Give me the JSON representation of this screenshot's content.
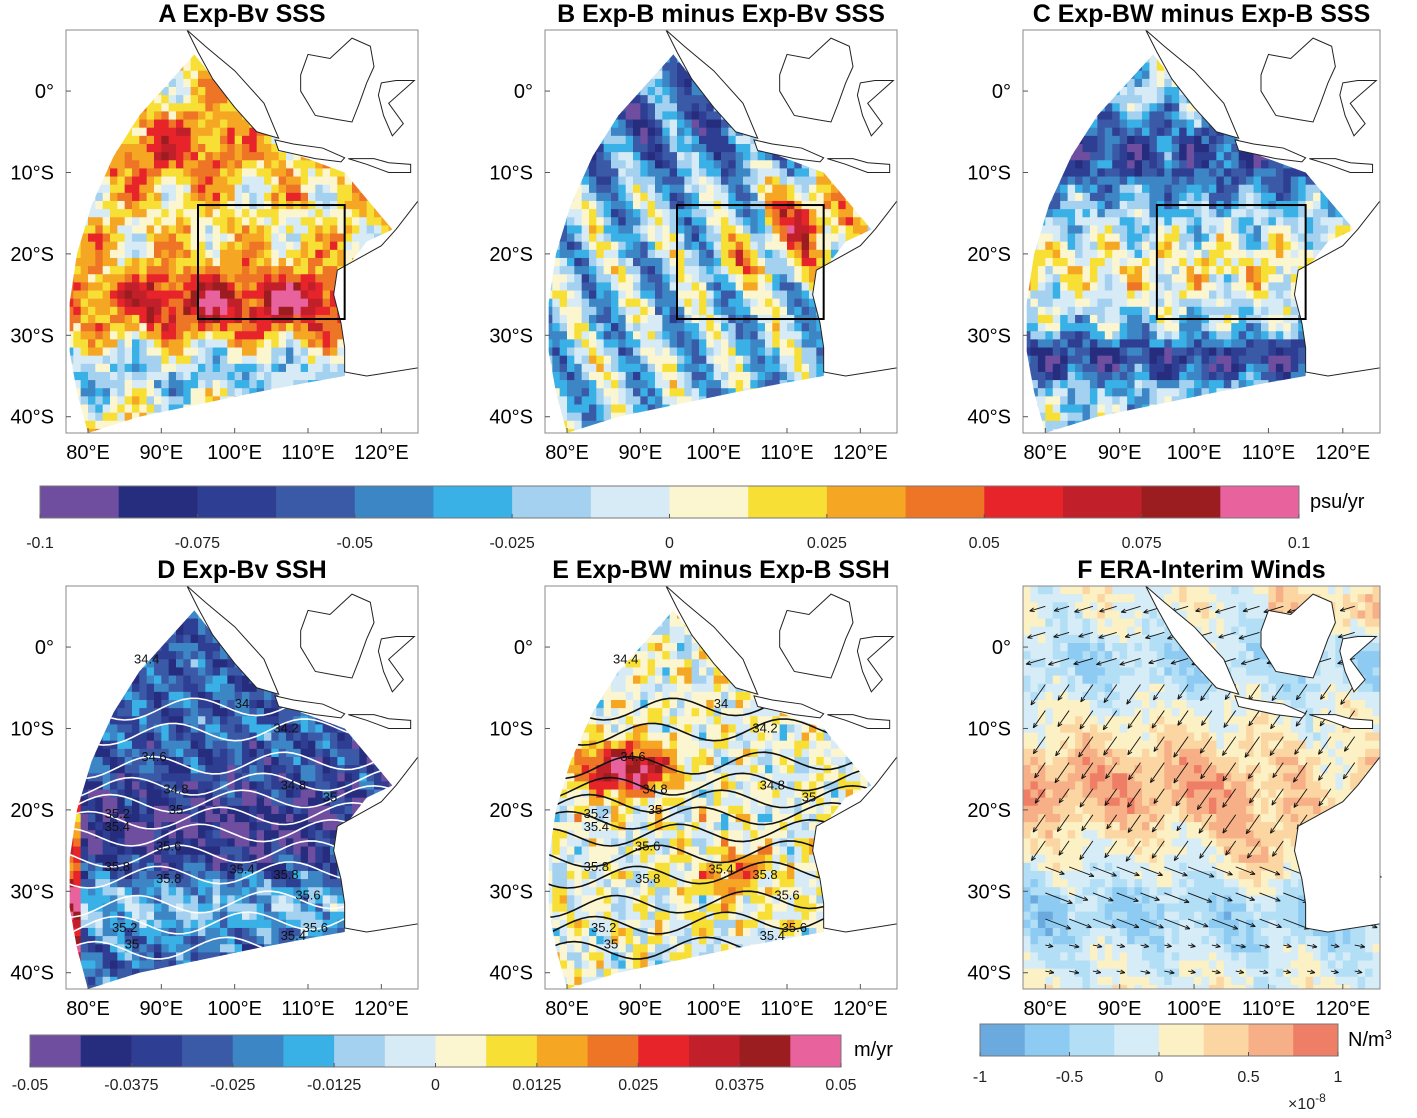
{
  "panels": [
    {
      "letter": "A",
      "title": "Exp-Bv SSS",
      "kind": "sss"
    },
    {
      "letter": "B",
      "title": "Exp-B minus Exp-Bv SSS",
      "kind": "sss"
    },
    {
      "letter": "C",
      "title": "Exp-BW minus Exp-B SSS",
      "kind": "sss"
    },
    {
      "letter": "D",
      "title": "Exp-Bv SSH",
      "kind": "ssh"
    },
    {
      "letter": "E",
      "title": "Exp-BW minus Exp-B SSH",
      "kind": "ssh"
    },
    {
      "letter": "F",
      "title": "ERA-Interim Winds",
      "kind": "wind"
    }
  ],
  "axes": {
    "lat_labels": [
      "0°",
      "10°S",
      "20°S",
      "30°S",
      "40°S"
    ],
    "lon_labels": [
      "80°E",
      "90°E",
      "100°E",
      "110°E",
      "120°E"
    ]
  },
  "box_region": {
    "lon": [
      95,
      115
    ],
    "lat": [
      -28,
      -14
    ]
  },
  "colorbar_sss": {
    "unit": "psu/yr",
    "ticks": [
      "-0.1",
      "-0.075",
      "-0.05",
      "-0.025",
      "0",
      "0.025",
      "0.05",
      "0.075",
      "0.1"
    ],
    "colors": [
      "#6f4ea0",
      "#262d7e",
      "#2e3e92",
      "#3a5aa8",
      "#3d86c6",
      "#39b1e6",
      "#a3d1ef",
      "#d7ebf7",
      "#fbf6cf",
      "#f7df35",
      "#f5a623",
      "#ee7526",
      "#e8242b",
      "#c1202b",
      "#9b1d1f",
      "#e8629e"
    ]
  },
  "colorbar_ssh": {
    "unit": "m/yr",
    "ticks": [
      "-0.05",
      "-0.0375",
      "-0.025",
      "-0.0125",
      "0",
      "0.0125",
      "0.025",
      "0.0375",
      "0.05"
    ],
    "colors": [
      "#6f4ea0",
      "#262d7e",
      "#2e3e92",
      "#3a5aa8",
      "#3d86c6",
      "#39b1e6",
      "#a3d1ef",
      "#d7ebf7",
      "#fbf6cf",
      "#f7df35",
      "#f5a623",
      "#ee7526",
      "#e8242b",
      "#c1202b",
      "#9b1d1f",
      "#e8629e"
    ]
  },
  "colorbar_wind": {
    "unit": "N/m",
    "unit_sup": "3",
    "ticks": [
      "-1",
      "-0.5",
      "0",
      "0.5",
      "1"
    ],
    "multiplier": "×10",
    "multiplier_exp": "-8",
    "colors": [
      "#6aaadf",
      "#8ecbf2",
      "#b2def6",
      "#d6ecf6",
      "#fbf1c4",
      "#fbd6a2",
      "#f6af86",
      "#ee7f66"
    ]
  },
  "salinity_contours": {
    "labels": [
      "34",
      "34.2",
      "34.4",
      "34.6",
      "34.8",
      "35",
      "35.2",
      "35.4",
      "35.6",
      "35.8"
    ]
  }
}
